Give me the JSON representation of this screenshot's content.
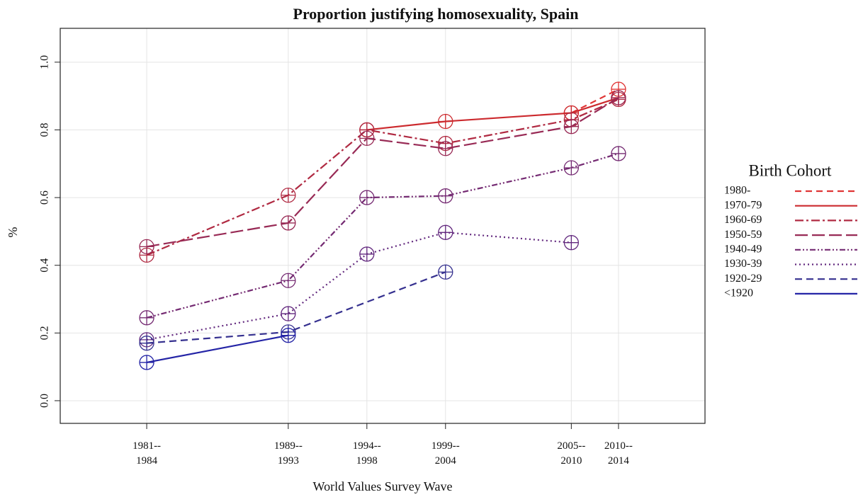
{
  "chart_data": {
    "type": "line",
    "title": "Proportion justifying homosexuality, Spain",
    "x_label": "World Values Survey Wave",
    "y_label": "%",
    "legend_title": "Birth Cohort",
    "legend_position": "right",
    "grid": true,
    "xlim": [
      1975.5,
      2016.5
    ],
    "ylim": [
      -0.067,
      1.1
    ],
    "xticks": [
      {
        "value": 1981,
        "label": "1981--\n1984"
      },
      {
        "value": 1990,
        "label": "1989--\n1993"
      },
      {
        "value": 1995,
        "label": "1994--\n1998"
      },
      {
        "value": 2000,
        "label": "1999--\n2004"
      },
      {
        "value": 2008,
        "label": "2005--\n2010"
      },
      {
        "value": 2011,
        "label": "2010--\n2014"
      }
    ],
    "yticks": [
      {
        "value": 0,
        "label": "0.0"
      },
      0.2,
      0.4,
      0.6,
      0.8,
      {
        "value": 1,
        "label": "1.0"
      }
    ],
    "series": [
      {
        "name": "1980-",
        "color": "#e03535",
        "dash": "9,6",
        "x": [
          2008,
          2011
        ],
        "values": [
          0.85,
          0.92
        ]
      },
      {
        "name": "1970-79",
        "color": "#cc2a2e",
        "dash": "",
        "x": [
          1995,
          2000,
          2008,
          2011
        ],
        "values": [
          0.8,
          0.825,
          0.85,
          0.895
        ]
      },
      {
        "name": "1960-69",
        "color": "#b02a42",
        "dash": "12,4,3,4",
        "x": [
          1981,
          1990,
          1995,
          2000,
          2008,
          2011
        ],
        "values": [
          0.43,
          0.607,
          0.8,
          0.76,
          0.83,
          0.89
        ]
      },
      {
        "name": "1950-59",
        "color": "#982a55",
        "dash": "18,6",
        "x": [
          1981,
          1990,
          1995,
          2000,
          2008,
          2011
        ],
        "values": [
          0.455,
          0.525,
          0.775,
          0.745,
          0.81,
          0.895
        ]
      },
      {
        "name": "1940-49",
        "color": "#742a72",
        "dash": "8,3,2,3,2,3",
        "x": [
          1981,
          1990,
          1995,
          2000,
          2008,
          2011
        ],
        "values": [
          0.245,
          0.355,
          0.6,
          0.605,
          0.688,
          0.73
        ]
      },
      {
        "name": "1930-39",
        "color": "#62287e",
        "dash": "2,4",
        "x": [
          1981,
          1990,
          1995,
          2000,
          2008
        ],
        "values": [
          0.18,
          0.257,
          0.433,
          0.497,
          0.467
        ]
      },
      {
        "name": "1920-29",
        "color": "#35308f",
        "dash": "10,6",
        "x": [
          1981,
          1990,
          2000
        ],
        "values": [
          0.17,
          0.203,
          0.38
        ]
      },
      {
        "name": "<1920",
        "color": "#2424a6",
        "dash": "",
        "x": [
          1981,
          1990
        ],
        "values": [
          0.113,
          0.193
        ]
      }
    ]
  }
}
